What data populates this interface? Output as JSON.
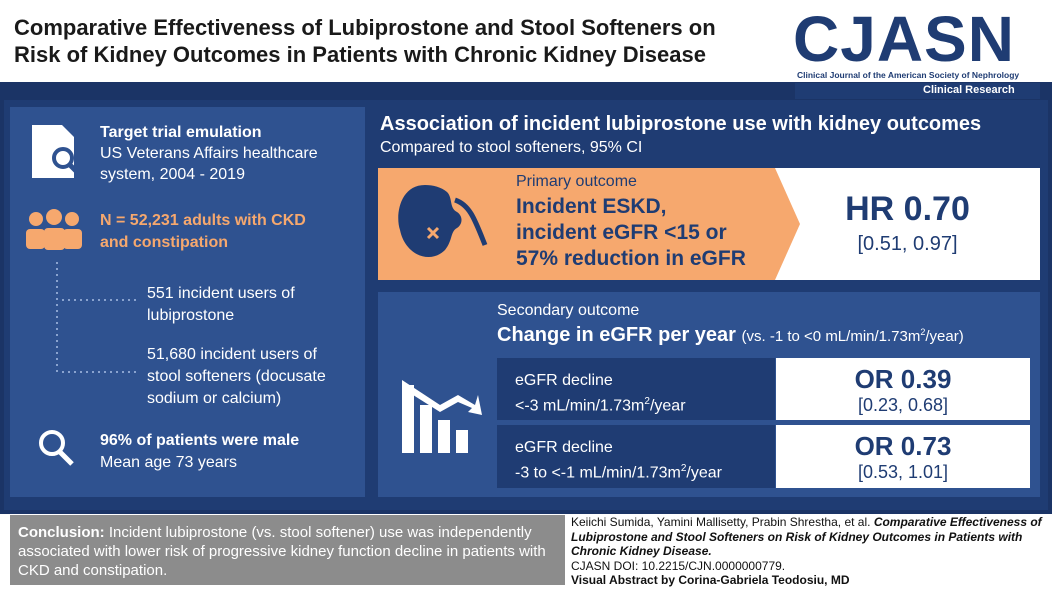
{
  "header": {
    "title_lines": [
      "Comparative Effectiveness of Lubiprostone and Stool Softeners on",
      "Risk of Kidney Outcomes in Patients with Chronic Kidney Disease"
    ],
    "logo": "CJASN",
    "journal": "Clinical Journal of the American Society of Nephrology",
    "section": "Clinical Research"
  },
  "left": {
    "design": {
      "title": "Target trial emulation",
      "lines": [
        "US Veterans Affairs healthcare",
        "system, 2004 - 2019"
      ]
    },
    "population": {
      "lines": [
        "N = 52,231 adults with CKD",
        "and constipation"
      ]
    },
    "groups": [
      {
        "lines": [
          "551 incident users of",
          "lubiprostone"
        ]
      },
      {
        "lines": [
          "51,680 incident users of",
          "stool softeners (docusate",
          "sodium or calcium)"
        ]
      }
    ],
    "demographics": {
      "title": "96% of patients were male",
      "text": "Mean age 73 years"
    }
  },
  "right": {
    "title": "Association of incident lubiprostone use with kidney outcomes",
    "subtitle": "Compared to stool softeners, 95% CI",
    "primary": {
      "label": "Primary outcome",
      "outcome_lines": [
        "Incident ESKD,",
        "incident eGFR <15 or",
        "57% reduction in eGFR"
      ],
      "estimate": "HR 0.70",
      "ci": "[0.51, 0.97]"
    },
    "secondary": {
      "label": "Secondary outcome",
      "title": "Change in eGFR per year",
      "note": [
        "(vs. -1 to <0 mL/min/1.73m",
        "2",
        "/year)"
      ],
      "rows": [
        {
          "label": "eGFR decline",
          "range": [
            "<-3 mL/min/1.73m",
            "2",
            "/year"
          ],
          "estimate": "OR 0.39",
          "ci": "[0.23, 0.68]"
        },
        {
          "label": "eGFR decline",
          "range": [
            "-3 to <-1 mL/min/1.73m",
            "2",
            "/year"
          ],
          "estimate": "OR 0.73",
          "ci": "[0.53, 1.01]"
        }
      ]
    }
  },
  "footer": {
    "conclusion_label": "Conclusion:",
    "conclusion_text": "Incident lubiprostone (vs. stool softener) use was independently associated with lower risk of progressive kidney function decline in patients with CKD and constipation.",
    "citation": {
      "authors": "Keiichi Sumida, Yamini Mallisetty, Prabin Shrestha, et al.",
      "article": "Comparative Effectiveness of Lubiprostone and Stool Softeners on Risk of Kidney Outcomes in Patients with Chronic Kidney Disease.",
      "doi": "CJASN DOI: 10.2215/CJN.0000000779.",
      "credit": "Visual Abstract by Corina-Gabriela Teodosiu, MD"
    }
  }
}
